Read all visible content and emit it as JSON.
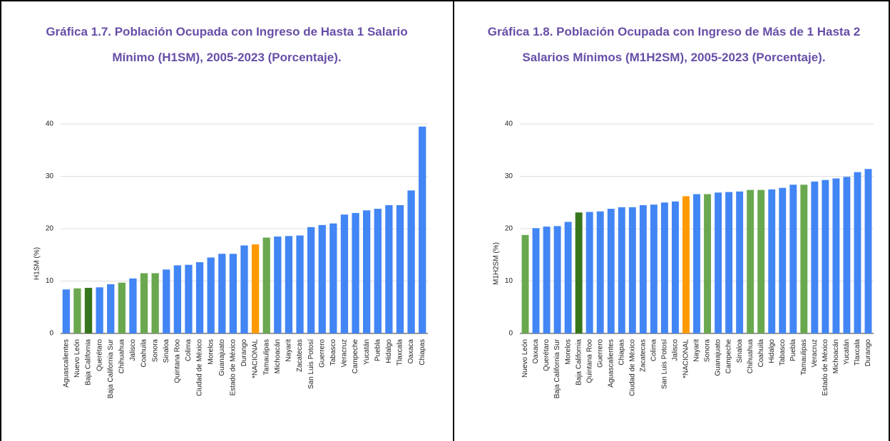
{
  "chart_data": [
    {
      "type": "bar",
      "title": "Gráfica 1.7. Población Ocupada con Ingreso de Hasta 1 Salario Mínimo (H1SM), 2005-2023 (Porcentaje).",
      "y_label": "H1SM (%)",
      "categories": [
        "Aguascalientes",
        "Nuevo León",
        "Baja California",
        "Querétaro",
        "Baja California Sur",
        "Chihuahua",
        "Jalisco",
        "Coahuila",
        "Sonora",
        "Sinaloa",
        "Quintana Roo",
        "Colima",
        "Ciudad de México",
        "Morelos",
        "Guanajuato",
        "Estado de México",
        "Durango",
        "*NACIONAL",
        "Tamaulipas",
        "Michoacán",
        "Nayarit",
        "Zacatecas",
        "San Luis Potosí",
        "Guerrero",
        "Tabasco",
        "Veracruz",
        "Campeche",
        "Yucatán",
        "Puebla",
        "Hidalgo",
        "Tlaxcala",
        "Oaxaca",
        "Chiapas"
      ],
      "values": [
        8.4,
        8.6,
        8.7,
        8.8,
        9.4,
        9.7,
        10.5,
        11.5,
        11.5,
        12.2,
        13.0,
        13.1,
        13.6,
        14.5,
        15.2,
        15.2,
        16.8,
        17.0,
        18.3,
        18.5,
        18.6,
        18.7,
        20.3,
        20.7,
        21.0,
        22.7,
        23.0,
        23.5,
        23.8,
        24.5,
        24.5,
        27.3,
        39.5
      ],
      "colors": [
        "#4285f4",
        "#6aa84f",
        "#38761d",
        "#4285f4",
        "#4285f4",
        "#6aa84f",
        "#4285f4",
        "#6aa84f",
        "#6aa84f",
        "#4285f4",
        "#4285f4",
        "#4285f4",
        "#4285f4",
        "#4285f4",
        "#4285f4",
        "#4285f4",
        "#4285f4",
        "#ff9900",
        "#6aa84f",
        "#4285f4",
        "#4285f4",
        "#4285f4",
        "#4285f4",
        "#4285f4",
        "#4285f4",
        "#4285f4",
        "#4285f4",
        "#4285f4",
        "#4285f4",
        "#4285f4",
        "#4285f4",
        "#4285f4",
        "#4285f4"
      ],
      "ylim": [
        0,
        40
      ],
      "yticks": [
        0,
        10,
        20,
        30,
        40
      ],
      "grid": true
    },
    {
      "type": "bar",
      "title": "Gráfica 1.8. Población Ocupada con Ingreso de Más de 1 Hasta 2 Salarios Mínimos (M1H2SM), 2005-2023 (Porcentaje).",
      "y_label": "M1H2SM (%)",
      "categories": [
        "Nuevo León",
        "Oaxaca",
        "Querétaro",
        "Baja California Sur",
        "Morelos",
        "Baja California",
        "Quintana Roo",
        "Guerrero",
        "Aguascalientes",
        "Chiapas",
        "Ciudad de México",
        "Zacatecas",
        "Colima",
        "San Luis Potosí",
        "Jalisco",
        "*NACIONAL",
        "Nayarit",
        "Sonora",
        "Guanajuato",
        "Campeche",
        "Sinaloa",
        "Chihuahua",
        "Coahuila",
        "Hidalgo",
        "Tabasco",
        "Puebla",
        "Tamaulipas",
        "Veracruz",
        "Estado de México",
        "Michoacán",
        "Yucatán",
        "Tlaxcala",
        "Durango"
      ],
      "values": [
        18.8,
        20.1,
        20.4,
        20.5,
        21.3,
        23.1,
        23.2,
        23.3,
        23.8,
        24.1,
        24.1,
        24.5,
        24.6,
        25.0,
        25.2,
        26.2,
        26.6,
        26.6,
        26.9,
        27.0,
        27.1,
        27.4,
        27.4,
        27.5,
        27.8,
        28.4,
        28.4,
        29.0,
        29.3,
        29.6,
        29.9,
        30.8,
        31.4
      ],
      "colors": [
        "#6aa84f",
        "#4285f4",
        "#4285f4",
        "#4285f4",
        "#4285f4",
        "#38761d",
        "#4285f4",
        "#4285f4",
        "#4285f4",
        "#4285f4",
        "#4285f4",
        "#4285f4",
        "#4285f4",
        "#4285f4",
        "#4285f4",
        "#ff9900",
        "#4285f4",
        "#6aa84f",
        "#4285f4",
        "#4285f4",
        "#4285f4",
        "#6aa84f",
        "#6aa84f",
        "#4285f4",
        "#4285f4",
        "#4285f4",
        "#6aa84f",
        "#4285f4",
        "#4285f4",
        "#4285f4",
        "#4285f4",
        "#4285f4",
        "#4285f4"
      ],
      "ylim": [
        0,
        40
      ],
      "yticks": [
        0,
        10,
        20,
        30,
        40
      ],
      "grid": true
    }
  ]
}
